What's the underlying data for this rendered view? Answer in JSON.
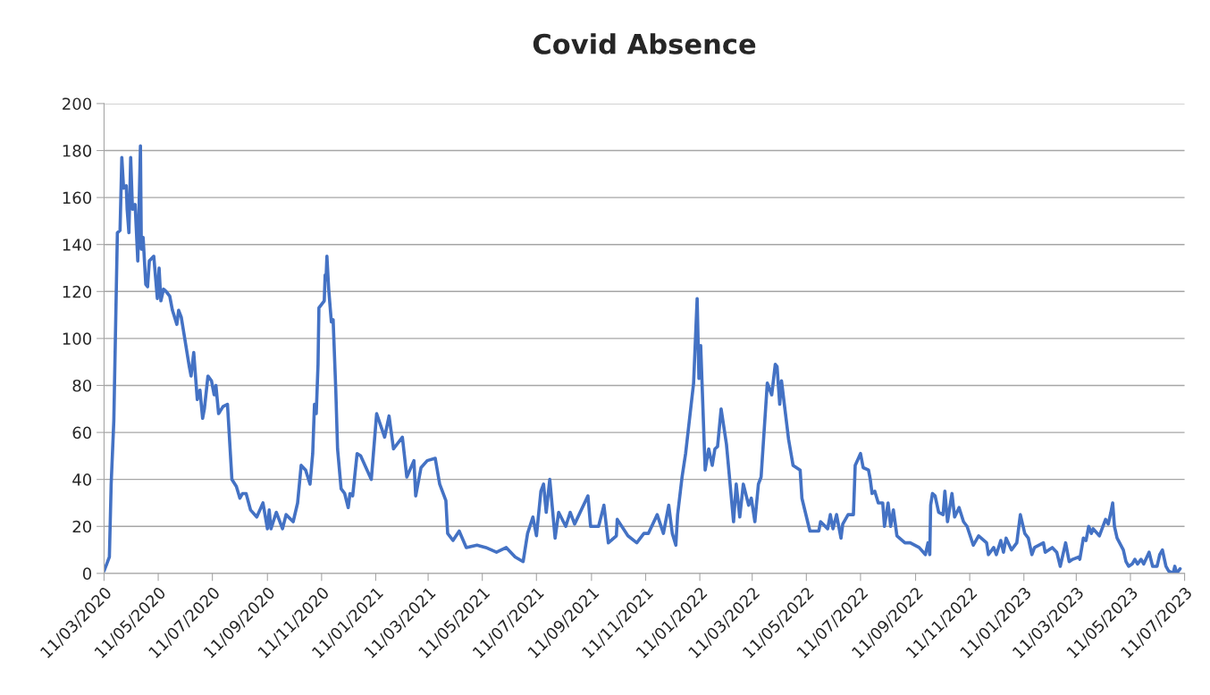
{
  "chart_data": {
    "type": "line",
    "title": "Covid Absence",
    "x": [
      "2020-03-11",
      "2020-03-14",
      "2020-03-17",
      "2020-03-19",
      "2020-03-22",
      "2020-03-26",
      "2020-03-29",
      "2020-03-31",
      "2020-04-02",
      "2020-04-05",
      "2020-04-06",
      "2020-04-08",
      "2020-04-10",
      "2020-04-12",
      "2020-04-15",
      "2020-04-18",
      "2020-04-21",
      "2020-04-22",
      "2020-04-24",
      "2020-04-27",
      "2020-04-29",
      "2020-05-01",
      "2020-05-06",
      "2020-05-10",
      "2020-05-12",
      "2020-05-14",
      "2020-05-17",
      "2020-05-20",
      "2020-05-24",
      "2020-05-27",
      "2020-06-01",
      "2020-06-03",
      "2020-06-06",
      "2020-06-09",
      "2020-06-15",
      "2020-06-17",
      "2020-06-20",
      "2020-06-24",
      "2020-06-27",
      "2020-06-30",
      "2020-07-02",
      "2020-07-06",
      "2020-07-10",
      "2020-07-13",
      "2020-07-15",
      "2020-07-18",
      "2020-07-23",
      "2020-07-28",
      "2020-08-02",
      "2020-08-07",
      "2020-08-11",
      "2020-08-14",
      "2020-08-18",
      "2020-08-23",
      "2020-08-30",
      "2020-09-06",
      "2020-09-11",
      "2020-09-13",
      "2020-09-15",
      "2020-09-21",
      "2020-09-28",
      "2020-10-02",
      "2020-10-10",
      "2020-10-15",
      "2020-10-19",
      "2020-10-24",
      "2020-10-29",
      "2020-11-01",
      "2020-11-03",
      "2020-11-05",
      "2020-11-07",
      "2020-11-08",
      "2020-11-14",
      "2020-11-15",
      "2020-11-16",
      "2020-11-17",
      "2020-11-19",
      "2020-11-22",
      "2020-11-24",
      "2020-11-27",
      "2020-11-29",
      "2020-12-03",
      "2020-12-07",
      "2020-12-11",
      "2020-12-13",
      "2020-12-16",
      "2020-12-21",
      "2020-12-25",
      "2021-01-06",
      "2021-01-12",
      "2021-01-21",
      "2021-01-26",
      "2021-01-31",
      "2021-02-10",
      "2021-02-15",
      "2021-02-23",
      "2021-02-25",
      "2021-03-03",
      "2021-03-10",
      "2021-03-19",
      "2021-03-24",
      "2021-03-31",
      "2021-04-02",
      "2021-04-08",
      "2021-04-15",
      "2021-04-23",
      "2021-05-05",
      "2021-05-15",
      "2021-05-27",
      "2021-06-07",
      "2021-06-17",
      "2021-06-26",
      "2021-07-01",
      "2021-07-07",
      "2021-07-11",
      "2021-07-16",
      "2021-07-19",
      "2021-07-22",
      "2021-07-26",
      "2021-08-01",
      "2021-08-05",
      "2021-08-13",
      "2021-08-18",
      "2021-08-23",
      "2021-09-07",
      "2021-09-10",
      "2021-09-19",
      "2021-09-25",
      "2021-09-30",
      "2021-10-09",
      "2021-10-10",
      "2021-10-22",
      "2021-11-01",
      "2021-11-09",
      "2021-11-14",
      "2021-11-24",
      "2021-12-01",
      "2021-12-07",
      "2021-12-11",
      "2021-12-15",
      "2021-12-17",
      "2021-12-22",
      "2021-12-26",
      "2022-01-04",
      "2022-01-08",
      "2022-01-10",
      "2022-01-12",
      "2022-01-17",
      "2022-01-21",
      "2022-01-25",
      "2022-01-28",
      "2022-01-31",
      "2022-02-04",
      "2022-02-10",
      "2022-02-18",
      "2022-02-21",
      "2022-02-25",
      "2022-03-01",
      "2022-03-07",
      "2022-03-10",
      "2022-03-14",
      "2022-03-18",
      "2022-03-21",
      "2022-03-28",
      "2022-04-02",
      "2022-04-06",
      "2022-04-08",
      "2022-04-11",
      "2022-04-13",
      "2022-04-21",
      "2022-04-26",
      "2022-05-04",
      "2022-05-06",
      "2022-05-15",
      "2022-05-25",
      "2022-05-27",
      "2022-06-04",
      "2022-06-07",
      "2022-06-10",
      "2022-06-14",
      "2022-06-19",
      "2022-06-21",
      "2022-06-27",
      "2022-07-03",
      "2022-07-05",
      "2022-07-11",
      "2022-07-14",
      "2022-07-20",
      "2022-07-22",
      "2022-07-24",
      "2022-07-27",
      "2022-07-31",
      "2022-08-05",
      "2022-08-07",
      "2022-08-11",
      "2022-08-14",
      "2022-08-17",
      "2022-08-21",
      "2022-08-30",
      "2022-09-05",
      "2022-09-15",
      "2022-09-22",
      "2022-09-25",
      "2022-09-27",
      "2022-09-28",
      "2022-09-30",
      "2022-10-03",
      "2022-10-07",
      "2022-10-12",
      "2022-10-14",
      "2022-10-17",
      "2022-10-22",
      "2022-10-25",
      "2022-10-30",
      "2022-11-04",
      "2022-11-08",
      "2022-11-15",
      "2022-11-21",
      "2022-11-30",
      "2022-12-02",
      "2022-12-08",
      "2022-12-11",
      "2022-12-16",
      "2022-12-19",
      "2022-12-22",
      "2022-12-28",
      "2023-01-03",
      "2023-01-07",
      "2023-01-12",
      "2023-01-16",
      "2023-01-20",
      "2023-01-23",
      "2023-02-02",
      "2023-02-04",
      "2023-02-12",
      "2023-02-17",
      "2023-02-21",
      "2023-02-27",
      "2023-03-03",
      "2023-03-07",
      "2023-03-14",
      "2023-03-15",
      "2023-03-19",
      "2023-03-22",
      "2023-03-25",
      "2023-03-28",
      "2023-03-30",
      "2023-04-06",
      "2023-04-13",
      "2023-04-16",
      "2023-04-19",
      "2023-04-21",
      "2023-04-23",
      "2023-04-26",
      "2023-05-03",
      "2023-05-06",
      "2023-05-09",
      "2023-05-13",
      "2023-05-16",
      "2023-05-19",
      "2023-05-23",
      "2023-05-26",
      "2023-06-01",
      "2023-06-05",
      "2023-06-10",
      "2023-06-13",
      "2023-06-16",
      "2023-06-20",
      "2023-06-23",
      "2023-06-28",
      "2023-06-30",
      "2023-07-02",
      "2023-07-06"
    ],
    "series": [
      {
        "color": "#4472c4",
        "values": [
          1,
          4,
          7,
          38,
          65,
          145,
          146,
          177,
          164,
          165,
          155,
          145,
          177,
          155,
          157,
          133,
          182,
          138,
          143,
          123,
          122,
          133,
          135,
          117,
          130,
          116,
          121,
          120,
          118,
          112,
          106,
          112,
          109,
          102,
          88,
          84,
          94,
          74,
          78,
          66,
          70,
          84,
          82,
          76,
          80,
          68,
          71,
          72,
          40,
          37,
          32,
          34,
          34,
          27,
          24,
          30,
          19,
          27,
          19,
          26,
          19,
          25,
          22,
          30,
          46,
          44,
          38,
          51,
          72,
          68,
          89,
          113,
          116,
          127,
          125,
          135,
          121,
          107,
          108,
          78,
          53,
          36,
          34,
          28,
          34,
          33,
          51,
          50,
          40,
          68,
          58,
          67,
          53,
          58,
          41,
          48,
          33,
          45,
          48,
          49,
          38,
          31,
          17,
          14,
          18,
          11,
          12,
          11,
          9,
          11,
          7,
          5,
          17,
          24,
          16,
          35,
          38,
          26,
          40,
          15,
          26,
          20,
          26,
          21,
          33,
          20,
          20,
          29,
          13,
          16,
          23,
          16,
          13,
          17,
          17,
          25,
          17,
          29,
          17,
          12,
          25,
          41,
          51,
          81,
          117,
          83,
          97,
          44,
          53,
          46,
          53,
          54,
          70,
          55,
          22,
          38,
          24,
          38,
          29,
          32,
          22,
          38,
          41,
          81,
          76,
          89,
          88,
          72,
          82,
          57,
          46,
          44,
          32,
          18,
          18,
          22,
          19,
          25,
          19,
          25,
          15,
          21,
          25,
          25,
          46,
          51,
          45,
          44,
          40,
          34,
          35,
          30,
          30,
          20,
          30,
          20,
          27,
          16,
          13,
          13,
          11,
          8,
          13,
          8,
          29,
          34,
          33,
          26,
          25,
          35,
          22,
          34,
          24,
          28,
          22,
          20,
          12,
          16,
          13,
          8,
          11,
          8,
          14,
          9,
          15,
          10,
          13,
          25,
          17,
          15,
          8,
          11,
          13,
          9,
          11,
          9,
          3,
          13,
          5,
          6,
          7,
          6,
          15,
          14,
          20,
          17,
          19,
          16,
          23,
          21,
          26,
          30,
          20,
          15,
          10,
          5,
          3,
          4,
          6,
          4,
          6,
          4,
          9,
          3,
          3,
          8,
          10,
          3,
          1,
          0,
          3,
          0,
          2
        ]
      }
    ],
    "xlim": [
      "2020-03-11",
      "2023-07-11"
    ],
    "xticks": [
      {
        "value": "2020-03-11",
        "label": "11/03/2020"
      },
      {
        "value": "2020-05-11",
        "label": "11/05/2020"
      },
      {
        "value": "2020-07-11",
        "label": "11/07/2020"
      },
      {
        "value": "2020-09-11",
        "label": "11/09/2020"
      },
      {
        "value": "2020-11-11",
        "label": "11/11/2020"
      },
      {
        "value": "2021-01-11",
        "label": "11/01/2021"
      },
      {
        "value": "2021-03-11",
        "label": "11/03/2021"
      },
      {
        "value": "2021-05-11",
        "label": "11/05/2021"
      },
      {
        "value": "2021-07-11",
        "label": "11/07/2021"
      },
      {
        "value": "2021-09-11",
        "label": "11/09/2021"
      },
      {
        "value": "2021-11-11",
        "label": "11/11/2021"
      },
      {
        "value": "2022-01-11",
        "label": "11/01/2022"
      },
      {
        "value": "2022-03-11",
        "label": "11/03/2022"
      },
      {
        "value": "2022-05-11",
        "label": "11/05/2022"
      },
      {
        "value": "2022-07-11",
        "label": "11/07/2022"
      },
      {
        "value": "2022-09-11",
        "label": "11/09/2022"
      },
      {
        "value": "2022-11-11",
        "label": "11/11/2022"
      },
      {
        "value": "2023-01-11",
        "label": "11/01/2023"
      },
      {
        "value": "2023-03-11",
        "label": "11/03/2023"
      },
      {
        "value": "2023-05-11",
        "label": "11/05/2023"
      },
      {
        "value": "2023-07-11",
        "label": "11/07/2023"
      }
    ],
    "ylim": [
      0,
      200
    ],
    "yticks": [
      0,
      20,
      40,
      60,
      80,
      100,
      120,
      140,
      160,
      180,
      200
    ],
    "grid": "y",
    "legend": false,
    "marker": "none",
    "line_style": "solid"
  }
}
